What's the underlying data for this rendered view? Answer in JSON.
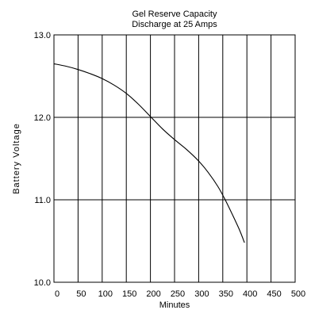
{
  "chart_data": {
    "type": "line",
    "title": "Gel Reserve Capacity",
    "subtitle": "Discharge at 25 Amps",
    "xlabel": "Minutes",
    "ylabel": "Battery Voltage",
    "xlim": [
      0,
      500
    ],
    "ylim": [
      10.0,
      13.0
    ],
    "x_ticks": [
      0,
      50,
      100,
      150,
      200,
      250,
      300,
      350,
      400,
      450,
      500
    ],
    "x_tick_labels": [
      "0",
      "50",
      "100",
      "150",
      "200",
      "250",
      "300",
      "350",
      "400",
      "450",
      "500"
    ],
    "y_ticks": [
      10.0,
      11.0,
      12.0,
      13.0
    ],
    "y_tick_labels": [
      "10.0",
      "11.0",
      "12.0",
      "13.0"
    ],
    "grid": true,
    "legend": "none",
    "series": [
      {
        "color": "#000000",
        "x": [
          0,
          25,
          50,
          75,
          100,
          125,
          150,
          175,
          200,
          225,
          250,
          275,
          300,
          320,
          340,
          355,
          370,
          385,
          395
        ],
        "y": [
          12.65,
          12.62,
          12.58,
          12.53,
          12.47,
          12.39,
          12.29,
          12.16,
          12.01,
          11.86,
          11.73,
          11.61,
          11.47,
          11.33,
          11.16,
          11.0,
          10.82,
          10.63,
          10.48
        ]
      }
    ]
  }
}
